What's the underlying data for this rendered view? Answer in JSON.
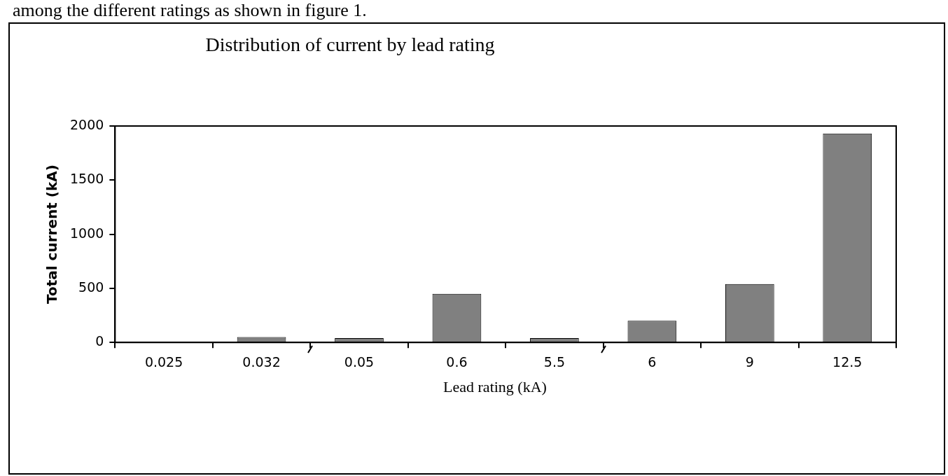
{
  "chart_data": {
    "type": "bar",
    "title": "Distribution of current by lead rating",
    "xlabel": "Lead rating (kA)",
    "ylabel": "Total current (kA)",
    "categories": [
      "0.025",
      "0.032",
      "0.05",
      "0.6",
      "5.5",
      "6",
      "9",
      "12.5"
    ],
    "values": [
      0,
      50,
      40,
      450,
      40,
      200,
      540,
      1930
    ],
    "color": "#808080",
    "ylim": [
      0,
      2000
    ],
    "yticks": [
      0,
      500,
      1000,
      1500,
      2000
    ],
    "grid": false,
    "legend": false,
    "annotations": [
      "among the different ratings as shown in figure 1."
    ]
  }
}
